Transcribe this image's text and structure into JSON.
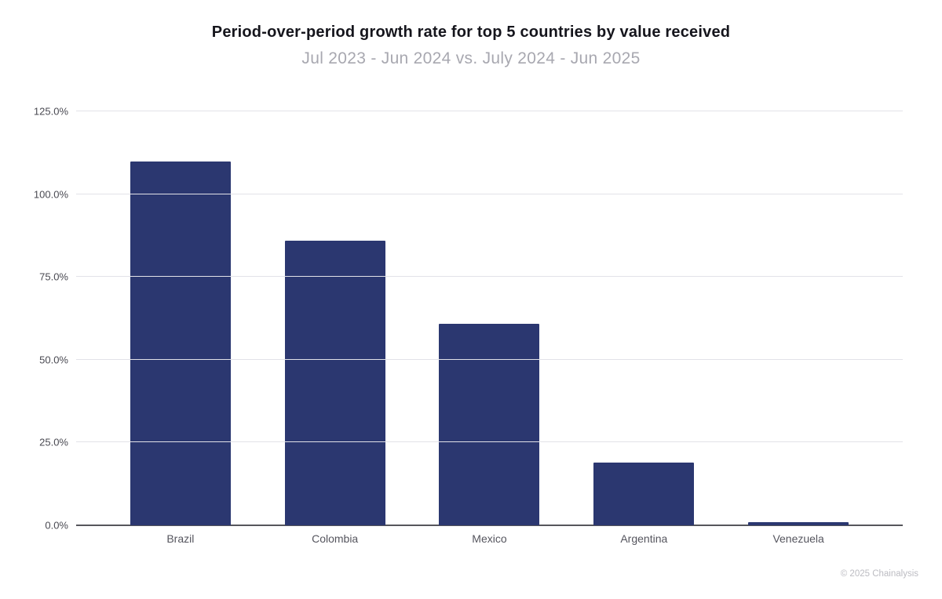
{
  "header": {
    "title": "Period-over-period growth rate for top 5 countries by value received",
    "subtitle": "Jul 2023 - Jun 2024 vs. July 2024 - Jun 2025"
  },
  "footer": {
    "copyright": "© 2025 Chainalysis"
  },
  "colors": {
    "bar": "#2b3770",
    "gridline": "#e2e2e8",
    "axis_line": "#56565c",
    "title_text": "#15151c",
    "subtitle_text": "#a8a8b0"
  },
  "chart_data": {
    "type": "bar",
    "title": "Period-over-period growth rate for top 5 countries by value received",
    "subtitle": "Jul 2023 - Jun 2024 vs. July 2024 - Jun 2025",
    "categories": [
      "Brazil",
      "Colombia",
      "Mexico",
      "Argentina",
      "Venezuela"
    ],
    "values": [
      110,
      86,
      61,
      19,
      1
    ],
    "unit": "%",
    "xlabel": "",
    "ylabel": "",
    "ylim": [
      0,
      130.3
    ],
    "yticks": [
      0,
      25,
      50,
      75,
      100,
      125
    ],
    "ytick_labels": [
      "0.0%",
      "25.0%",
      "50.0%",
      "75.0%",
      "100.0%",
      "125.0%"
    ],
    "grid": "horizontal",
    "legend_position": "none",
    "bar_color": "#2b3770"
  }
}
